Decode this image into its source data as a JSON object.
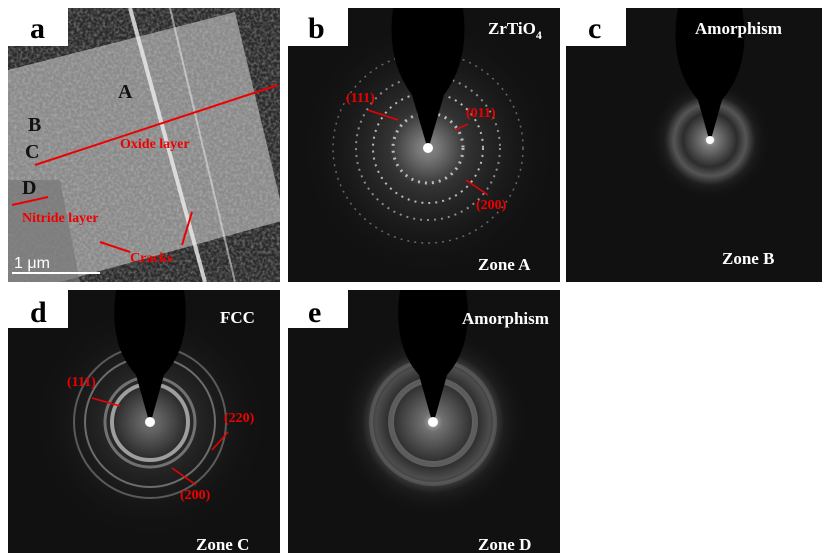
{
  "panels": [
    {
      "letter": "a",
      "labels": [
        "A",
        "B",
        "C",
        "D"
      ],
      "annotations": [
        "Oxide layer",
        "Nitride layer",
        "Cracks"
      ],
      "scale_bar": "1 μm"
    },
    {
      "letter": "b",
      "phase": {
        "text": "ZrTiO",
        "subscript": "4"
      },
      "planes": [
        "(111)",
        "(011)",
        "(200)"
      ],
      "zone": "Zone A"
    },
    {
      "letter": "c",
      "phase": "Amorphism",
      "zone": "Zone B"
    },
    {
      "letter": "d",
      "phase": "FCC",
      "planes": [
        "(111)",
        "(220)",
        "(200)"
      ],
      "zone": "Zone C"
    },
    {
      "letter": "e",
      "phase": "Amorphism",
      "zone": "Zone D"
    }
  ]
}
